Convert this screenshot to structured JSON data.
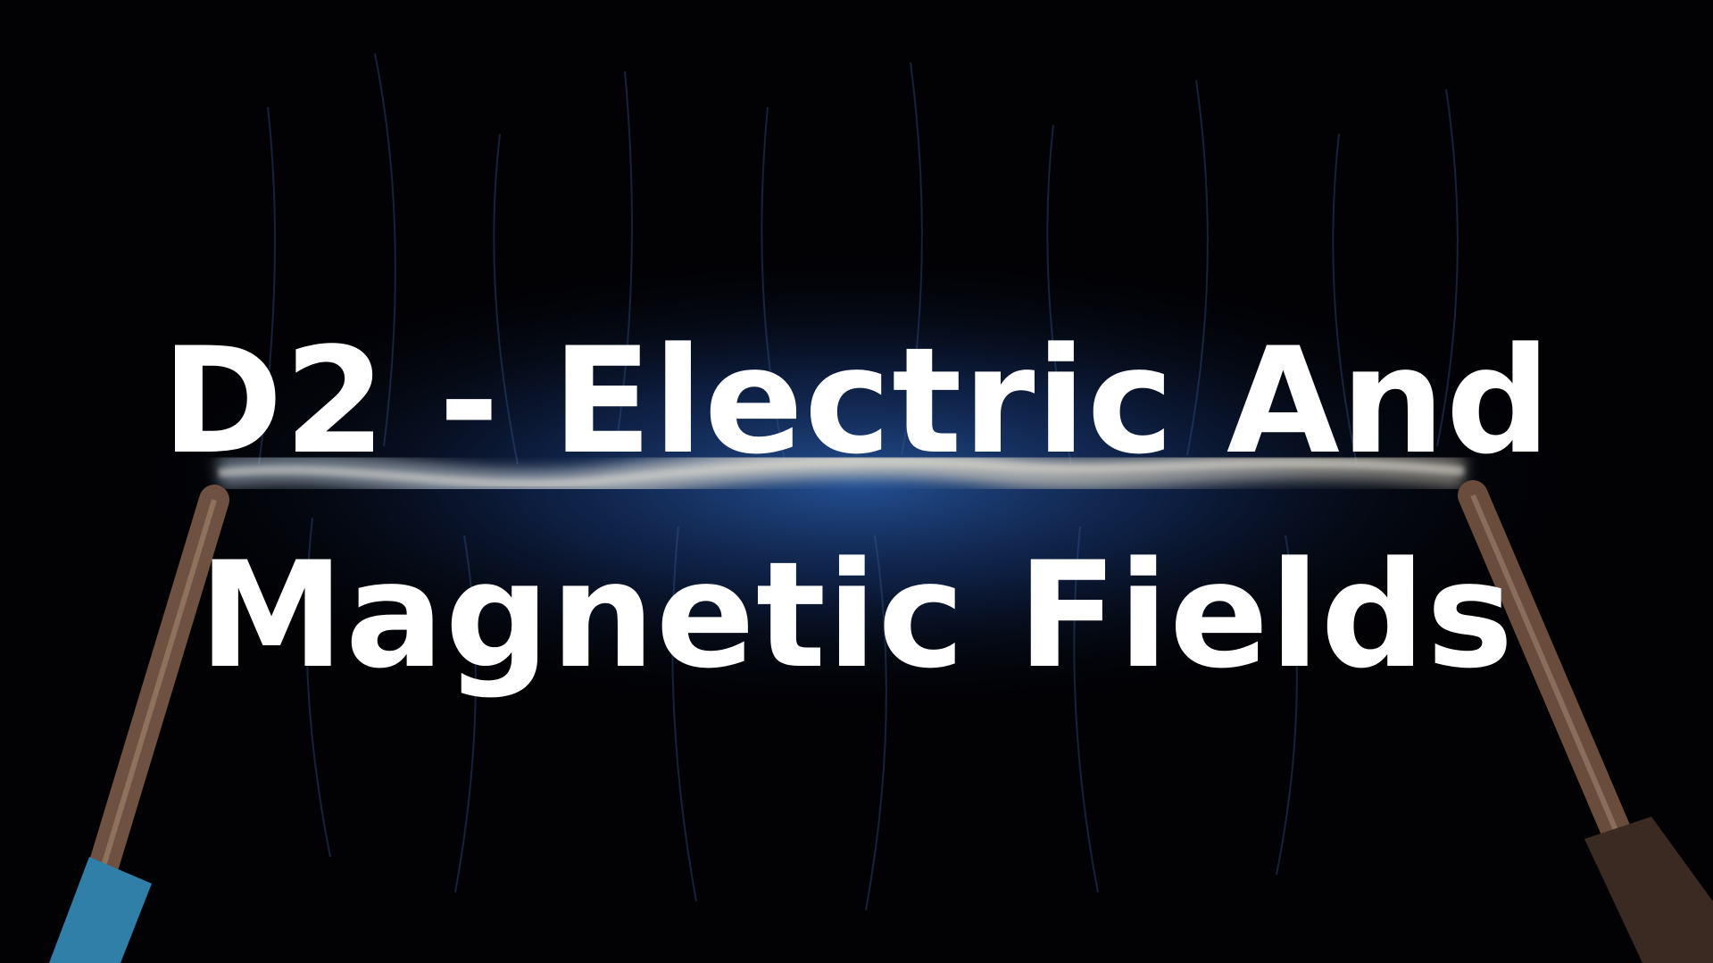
{
  "slide": {
    "title_line_1": "D2 - Electric And",
    "title_line_2": "Magnetic Fields"
  },
  "background": {
    "description_icon": "electric-arc-between-wires",
    "colors": {
      "base": "#020205",
      "glow": "#2a5fb0",
      "arc": "#c9c7c0",
      "left_wire_sleeve": "#2f7fa8",
      "right_wire_sleeve": "#3a2a22",
      "copper": "#7a5a45"
    }
  }
}
